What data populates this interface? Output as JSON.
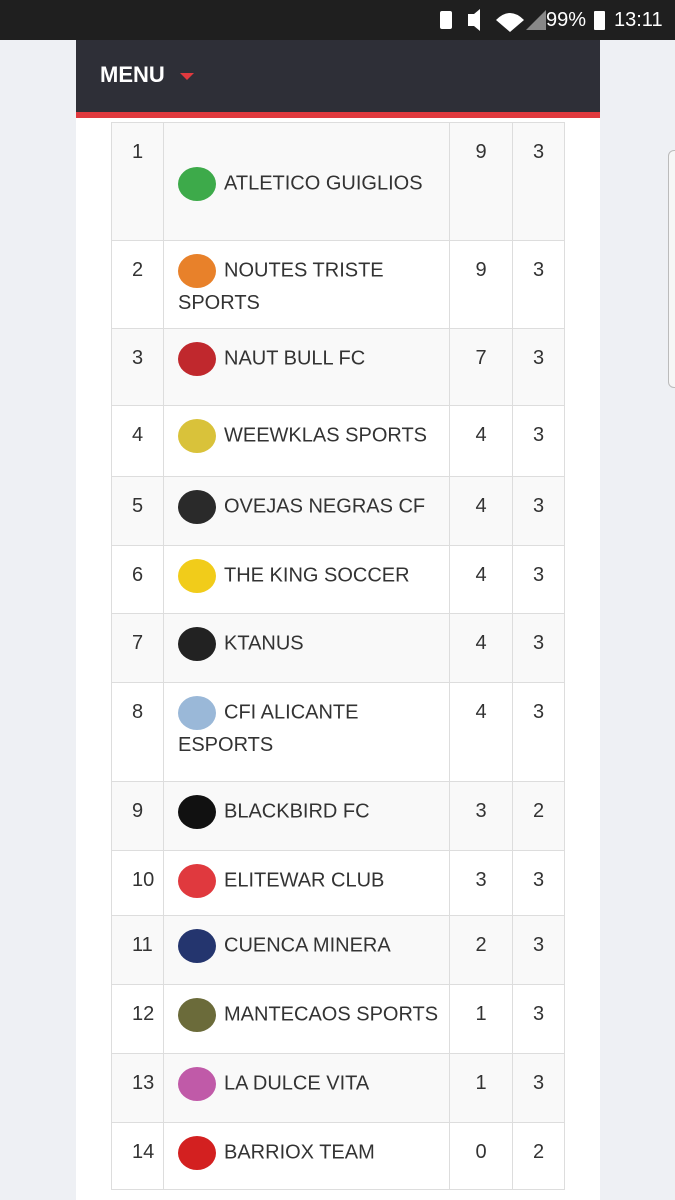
{
  "status_bar": {
    "battery": "99%",
    "time": "13:11"
  },
  "menu": {
    "label": "MENU"
  },
  "table": {
    "rows": [
      [
        1,
        "ATLETICO GUIGLIOS",
        9,
        3
      ],
      [
        2,
        "NOUTES TRISTE SPORTS",
        9,
        3
      ],
      [
        3,
        "NAUT BULL FC",
        7,
        3
      ],
      [
        4,
        "WEEWKLAS SPORTS",
        4,
        3
      ],
      [
        5,
        "OVEJAS NEGRAS CF",
        4,
        3
      ],
      [
        6,
        "THE KING SOCCER",
        4,
        3
      ],
      [
        7,
        "KTANUS",
        4,
        3
      ],
      [
        8,
        "CFI ALICANTE ESPORTS",
        4,
        3
      ],
      [
        9,
        "BLACKBIRD FC",
        3,
        2
      ],
      [
        10,
        "ELITEWAR CLUB",
        3,
        3
      ],
      [
        11,
        "CUENCA MINERA",
        2,
        3
      ],
      [
        12,
        "MANTECAOS SPORTS",
        1,
        3
      ],
      [
        13,
        "LA DULCE VITA",
        1,
        3
      ],
      [
        14,
        "BARRIOX TEAM",
        0,
        2
      ]
    ]
  }
}
